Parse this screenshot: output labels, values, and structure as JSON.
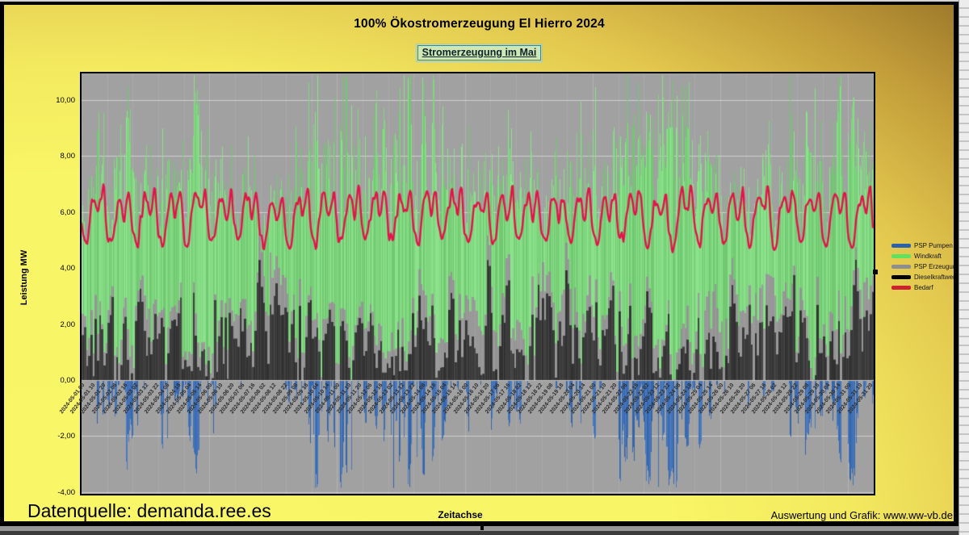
{
  "header": {
    "title": "100% Ökostromerzeugung El Hierro 2024",
    "subtitle": "Stromerzeugung im Mai"
  },
  "footer": {
    "source": "Datenquelle: demanda.ree.es",
    "credit": "Auswertung und Grafik: www.ww-vb.de"
  },
  "chart_data": {
    "type": "area",
    "title": "100% Ökostromerzeugung El Hierro 2024",
    "subtitle": "Stromerzeugung im Mai",
    "xlabel": "Zeitachse",
    "ylabel": "Leistung MW",
    "x_range": [
      "2024-05-01 00",
      "2024-05-31 23"
    ],
    "hours_total": 744,
    "ylim": [
      -4.06,
      10.95
    ],
    "grid": {
      "h_step": 2,
      "color": "rgba(255,255,255,0.5)",
      "v_day_color": "rgba(255,255,255,0.10)"
    },
    "yticks": [
      {
        "value": 10,
        "label": "10,00"
      },
      {
        "value": 8,
        "label": "8,00"
      },
      {
        "value": 6,
        "label": "6,00"
      },
      {
        "value": 4,
        "label": "4,00"
      },
      {
        "value": 2,
        "label": "2,00"
      },
      {
        "value": 0,
        "label": "0,00"
      },
      {
        "value": -2,
        "label": "-2,00"
      },
      {
        "value": -4,
        "label": "-4,00"
      }
    ],
    "x_tick_interval_hours": 10,
    "x_tick_labels": [
      "2024-05-01 00",
      "2024-05-01 10",
      "2024-05-01 20",
      "2024-05-02 06",
      "2024-05-02 16",
      "2024-05-03 02",
      "2024-05-03 12",
      "2024-05-03 22",
      "2024-05-04 08",
      "2024-05-04 18",
      "2024-05-05 04",
      "2024-05-05 14",
      "2024-05-06 00",
      "2024-05-06 10",
      "2024-05-06 20",
      "2024-05-07 06",
      "2024-05-07 16",
      "2024-05-08 02",
      "2024-05-08 12",
      "2024-05-08 22",
      "2024-05-09 08",
      "2024-05-09 18",
      "2024-05-10 04",
      "2024-05-10 14",
      "2024-05-11 00",
      "2024-05-11 10",
      "2024-05-11 20",
      "2024-05-12 06",
      "2024-05-12 16",
      "2024-05-13 02",
      "2024-05-13 12",
      "2024-05-13 22",
      "2024-05-14 08",
      "2024-05-14 18",
      "2024-05-15 04",
      "2024-05-15 14",
      "2024-05-16 00",
      "2024-05-16 10",
      "2024-05-16 20",
      "2024-05-17 06",
      "2024-05-17 16",
      "2024-05-18 02",
      "2024-05-18 12",
      "2024-05-18 22",
      "2024-05-19 08",
      "2024-05-19 18",
      "2024-05-20 04",
      "2024-05-20 14",
      "2024-05-21 00",
      "2024-05-21 10",
      "2024-05-21 20",
      "2024-05-22 06",
      "2024-05-22 16",
      "2024-05-23 02",
      "2024-05-23 12",
      "2024-05-23 22",
      "2024-05-24 08",
      "2024-05-24 18",
      "2024-05-25 04",
      "2024-05-25 14",
      "2024-05-26 00",
      "2024-05-26 10",
      "2024-05-26 20",
      "2024-05-27 06",
      "2024-05-27 16",
      "2024-05-28 02",
      "2024-05-28 12",
      "2024-05-28 22",
      "2024-05-29 08",
      "2024-05-29 18",
      "2024-05-30 04",
      "2024-05-30 14",
      "2024-05-31 00",
      "2024-05-31 10",
      "2024-05-31 20"
    ],
    "legend": [
      {
        "label": "PSP Pumpen",
        "color": "#2d62ab"
      },
      {
        "label": "Windkraft",
        "color": "#5fe35f"
      },
      {
        "label": "PSP Erzeugung",
        "color": "#8e8e8e"
      },
      {
        "label": "Dieselkraftwerk",
        "color": "#000000"
      },
      {
        "label": "Bedarf",
        "color": "#cc2231"
      }
    ],
    "colors": {
      "windkraft": "#7fd67f",
      "psp_erzeugung": "#979797",
      "dieselkraftwerk": "#3a3a3a",
      "psp_pumpen": "#4070b6",
      "bedarf": "#e3134b",
      "plot_bg": "#a1a1a1"
    },
    "series_model": {
      "bedarf_daily_profile_mw": [
        5.3,
        5.1,
        5.0,
        4.9,
        4.9,
        5.0,
        5.3,
        5.7,
        6.0,
        6.2,
        6.4,
        6.5,
        6.6,
        6.5,
        6.3,
        6.0,
        5.9,
        6.0,
        6.2,
        6.5,
        6.7,
        6.7,
        6.3,
        5.7
      ],
      "wind_daily_envelope_mw": [
        8.5,
        8,
        7.5,
        8.5,
        8,
        7.5,
        7,
        2.5,
        8.5,
        9.5,
        10,
        9,
        8.5,
        8,
        7,
        6.5,
        7,
        6.5,
        6,
        7.5,
        9,
        9.5,
        9,
        9.5,
        8,
        5.5,
        6.5,
        9,
        9.5,
        8.5,
        9
      ],
      "diesel_daily_envelope_mw": [
        3.5,
        3.5,
        4,
        3,
        3.5,
        3,
        4,
        6,
        3.5,
        2.5,
        2.5,
        3,
        3.5,
        3.5,
        4,
        4.5,
        5,
        4.5,
        5,
        4.5,
        3.5,
        3,
        3.5,
        3.5,
        4.5,
        5,
        4.5,
        4,
        3.5,
        4,
        4.5
      ],
      "psp_erzeugung_daily_envelope_mw": [
        0.8,
        0.8,
        1,
        0.8,
        0.8,
        0.8,
        1,
        1.5,
        0.8,
        0.6,
        0.6,
        0.8,
        1,
        1,
        1.2,
        1.3,
        1.4,
        1.2,
        1.4,
        1.2,
        0.8,
        0.8,
        0.8,
        0.8,
        1.2,
        2.2,
        1.8,
        0.8,
        0.8,
        1,
        1
      ],
      "psp_pumpen_daily_max_mw": [
        3.8,
        3.3,
        2.9,
        3.8,
        3.3,
        2.9,
        2.4,
        0,
        3.8,
        3.8,
        3.8,
        3.8,
        3.8,
        3.3,
        2.4,
        1.9,
        2.4,
        1.9,
        1.4,
        2.9,
        3.8,
        3.8,
        3.8,
        3.8,
        3.3,
        1,
        1.9,
        3.8,
        3.8,
        3.8,
        3.8
      ]
    }
  }
}
